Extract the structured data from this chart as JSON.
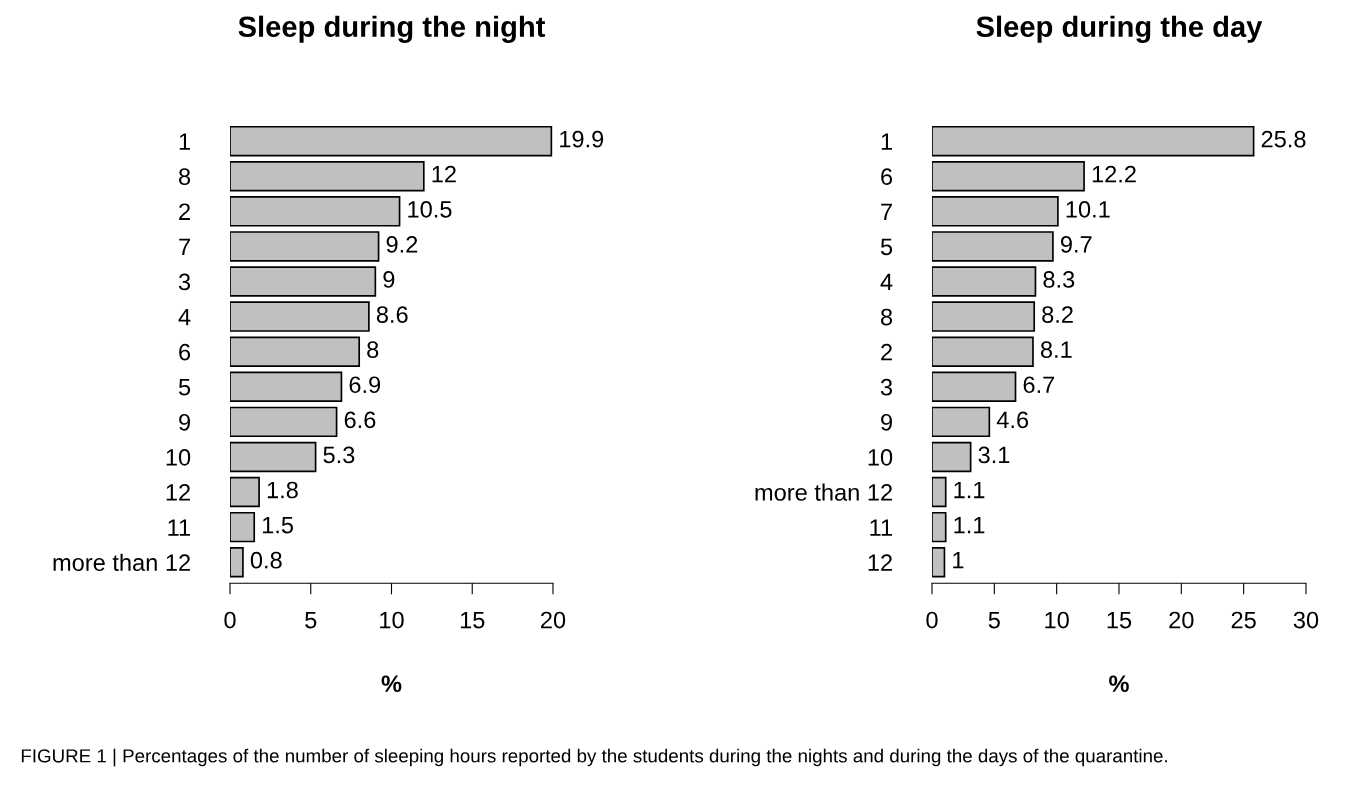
{
  "chart_data": [
    {
      "type": "bar",
      "orientation": "horizontal",
      "title": "Sleep during the night",
      "xlabel": "%",
      "categories": [
        "1",
        "8",
        "2",
        "7",
        "3",
        "4",
        "6",
        "5",
        "9",
        "10",
        "12",
        "11",
        "more than 12"
      ],
      "values": [
        19.9,
        12,
        10.5,
        9.2,
        9,
        8.6,
        8,
        6.9,
        6.6,
        5.3,
        1.8,
        1.5,
        0.8
      ],
      "color": "#c0c0c0",
      "xlim": [
        0,
        20
      ],
      "xticks": [
        0,
        5,
        10,
        15,
        20
      ],
      "data_labels": true,
      "annotations": [
        "FIGURE 1 | Percentages of the number of sleeping hours reported by the students during the nights and during the days of the quarantine."
      ]
    },
    {
      "type": "bar",
      "orientation": "horizontal",
      "title": "Sleep during the day",
      "xlabel": "%",
      "categories": [
        "1",
        "6",
        "7",
        "5",
        "4",
        "8",
        "2",
        "3",
        "9",
        "10",
        "more than 12",
        "11",
        "12"
      ],
      "values": [
        25.8,
        12.2,
        10.1,
        9.7,
        8.3,
        8.2,
        8.1,
        6.7,
        4.6,
        3.1,
        1.1,
        1.1,
        1
      ],
      "color": "#c0c0c0",
      "xlim": [
        0,
        30
      ],
      "xticks": [
        0,
        5,
        10,
        15,
        20,
        25,
        30
      ],
      "data_labels": true
    }
  ]
}
